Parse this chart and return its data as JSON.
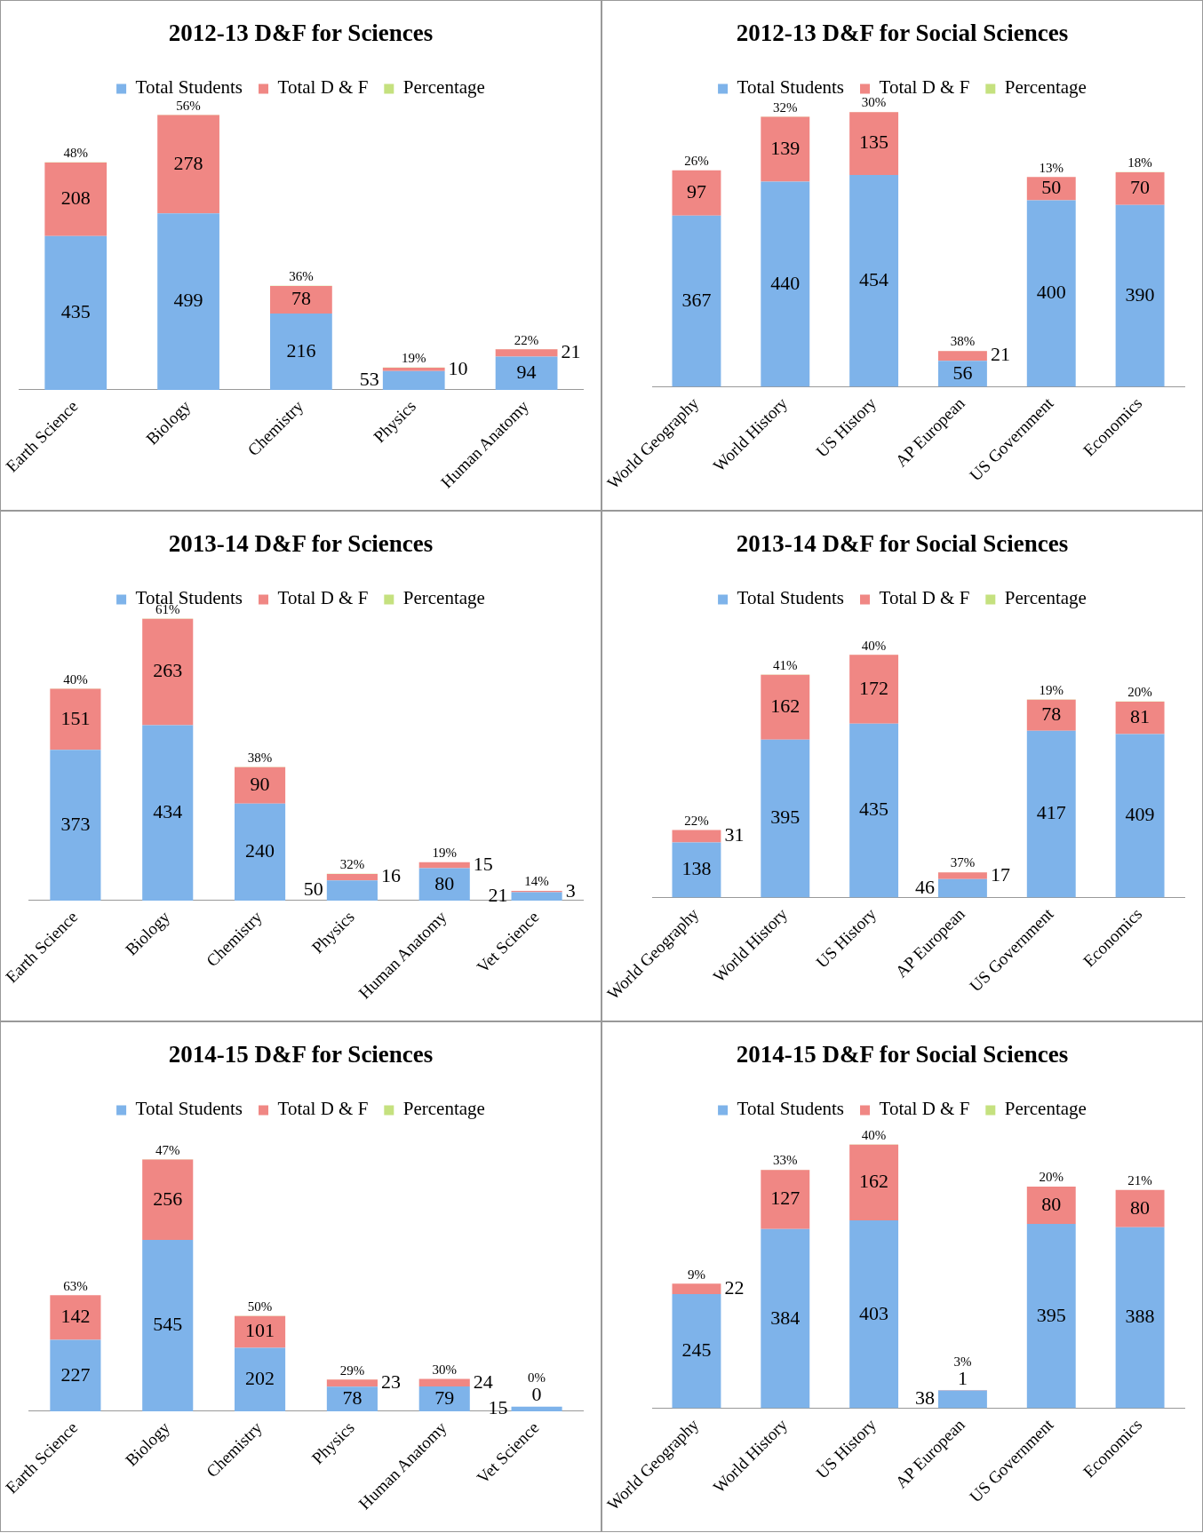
{
  "chart_data": [
    {
      "type": "bar",
      "title": "2012-13 D&F for Sciences",
      "categories": [
        "Earth Science",
        "Biology",
        "Chemistry",
        "Physics",
        "Human Anatomy"
      ],
      "stacked": true,
      "legend": "top",
      "tick_labels": "x",
      "series": [
        {
          "name": "Total Students",
          "color": "#7eb3ea",
          "values": [
            435,
            499,
            216,
            53,
            94
          ],
          "value_labels": [
            "435",
            "499",
            "216",
            "53",
            "94"
          ]
        },
        {
          "name": "Total D & F",
          "color": "#f08784",
          "values": [
            208,
            278,
            78,
            10,
            21
          ],
          "value_labels": [
            "208",
            "278",
            "78",
            "10",
            "21"
          ]
        },
        {
          "name": "Percentage",
          "color": "#c5e17f",
          "values": [
            0.48,
            0.56,
            0.36,
            0.19,
            0.22
          ],
          "value_labels": [
            "48%",
            "56%",
            "36%",
            "19%",
            "22%"
          ]
        }
      ]
    },
    {
      "type": "bar",
      "title": "2012-13 D&F for Social Sciences",
      "categories": [
        "World Geography",
        "World History",
        "US History",
        "AP European",
        "US Government",
        "Economics"
      ],
      "stacked": true,
      "legend": "top",
      "tick_labels": "x",
      "series": [
        {
          "name": "Total Students",
          "color": "#7eb3ea",
          "values": [
            367,
            440,
            454,
            56,
            400,
            390
          ],
          "value_labels": [
            "367",
            "440",
            "454",
            "56",
            "400",
            "390"
          ]
        },
        {
          "name": "Total D & F",
          "color": "#f08784",
          "values": [
            97,
            139,
            135,
            21,
            50,
            70
          ],
          "value_labels": [
            "97",
            "139",
            "135",
            "21",
            "50",
            "70"
          ]
        },
        {
          "name": "Percentage",
          "color": "#c5e17f",
          "values": [
            0.26,
            0.32,
            0.3,
            0.38,
            0.13,
            0.18
          ],
          "value_labels": [
            "26%",
            "32%",
            "30%",
            "38%",
            "13%",
            "18%"
          ]
        }
      ]
    },
    {
      "type": "bar",
      "title": "2013-14 D&F for Sciences",
      "categories": [
        "Earth Science",
        "Biology",
        "Chemistry",
        "Physics",
        "Human Anatomy",
        "Vet Science"
      ],
      "stacked": true,
      "legend": "top",
      "tick_labels": "x",
      "series": [
        {
          "name": "Total Students",
          "color": "#7eb3ea",
          "values": [
            373,
            434,
            240,
            50,
            80,
            21
          ],
          "value_labels": [
            "373",
            "434",
            "240",
            "50",
            "80",
            "21"
          ]
        },
        {
          "name": "Total D & F",
          "color": "#f08784",
          "values": [
            151,
            263,
            90,
            16,
            15,
            3
          ],
          "value_labels": [
            "151",
            "263",
            "90",
            "16",
            "15",
            "3"
          ]
        },
        {
          "name": "Percentage",
          "color": "#c5e17f",
          "values": [
            0.4,
            0.61,
            0.38,
            0.32,
            0.19,
            0.14
          ],
          "value_labels": [
            "40%",
            "61%",
            "38%",
            "32%",
            "19%",
            "14%"
          ]
        }
      ]
    },
    {
      "type": "bar",
      "title": "2013-14 D&F for Social Sciences",
      "categories": [
        "World Geography",
        "World History",
        "US History",
        "AP European",
        "US Government",
        "Economics"
      ],
      "stacked": true,
      "legend": "top",
      "tick_labels": "x",
      "series": [
        {
          "name": "Total Students",
          "color": "#7eb3ea",
          "values": [
            138,
            395,
            435,
            46,
            417,
            409
          ],
          "value_labels": [
            "138",
            "395",
            "435",
            "46",
            "417",
            "409"
          ]
        },
        {
          "name": "Total D & F",
          "color": "#f08784",
          "values": [
            31,
            162,
            172,
            17,
            78,
            81
          ],
          "value_labels": [
            "31",
            "162",
            "172",
            "17",
            "78",
            "81"
          ]
        },
        {
          "name": "Percentage",
          "color": "#c5e17f",
          "values": [
            0.22,
            0.41,
            0.4,
            0.37,
            0.19,
            0.2
          ],
          "value_labels": [
            "22%",
            "41%",
            "40%",
            "37%",
            "19%",
            "20%"
          ]
        }
      ]
    },
    {
      "type": "bar",
      "title": "2014-15 D&F for Sciences",
      "categories": [
        "Earth Science",
        "Biology",
        "Chemistry",
        "Physics",
        "Human Anatomy",
        "Vet Science"
      ],
      "stacked": true,
      "legend": "top",
      "tick_labels": "x",
      "series": [
        {
          "name": "Total Students",
          "color": "#7eb3ea",
          "values": [
            227,
            545,
            202,
            78,
            79,
            15
          ],
          "value_labels": [
            "227",
            "545",
            "202",
            "78",
            "79",
            "15"
          ]
        },
        {
          "name": "Total D & F",
          "color": "#f08784",
          "values": [
            142,
            256,
            101,
            23,
            24,
            0
          ],
          "value_labels": [
            "142",
            "256",
            "101",
            "23",
            "24",
            "0"
          ]
        },
        {
          "name": "Percentage",
          "color": "#c5e17f",
          "values": [
            0.63,
            0.47,
            0.5,
            0.29,
            0.3,
            0
          ],
          "value_labels": [
            "63%",
            "47%",
            "50%",
            "29%",
            "30%",
            "0%"
          ]
        }
      ]
    },
    {
      "type": "bar",
      "title": "2014-15 D&F for Social Sciences",
      "categories": [
        "World Geography",
        "World History",
        "US History",
        "AP European",
        "US Government",
        "Economics"
      ],
      "stacked": true,
      "legend": "top",
      "tick_labels": "x",
      "series": [
        {
          "name": "Total Students",
          "color": "#7eb3ea",
          "values": [
            245,
            384,
            403,
            38,
            395,
            388
          ],
          "value_labels": [
            "245",
            "384",
            "403",
            "38",
            "395",
            "388"
          ]
        },
        {
          "name": "Total D & F",
          "color": "#f08784",
          "values": [
            22,
            127,
            162,
            1,
            80,
            80
          ],
          "value_labels": [
            "22",
            "127",
            "162",
            "1",
            "80",
            "80"
          ]
        },
        {
          "name": "Percentage",
          "color": "#c5e17f",
          "values": [
            0.09,
            0.33,
            0.4,
            0.03,
            0.2,
            0.21
          ],
          "value_labels": [
            "9%",
            "33%",
            "40%",
            "3%",
            "20%",
            "21%"
          ]
        }
      ]
    }
  ]
}
